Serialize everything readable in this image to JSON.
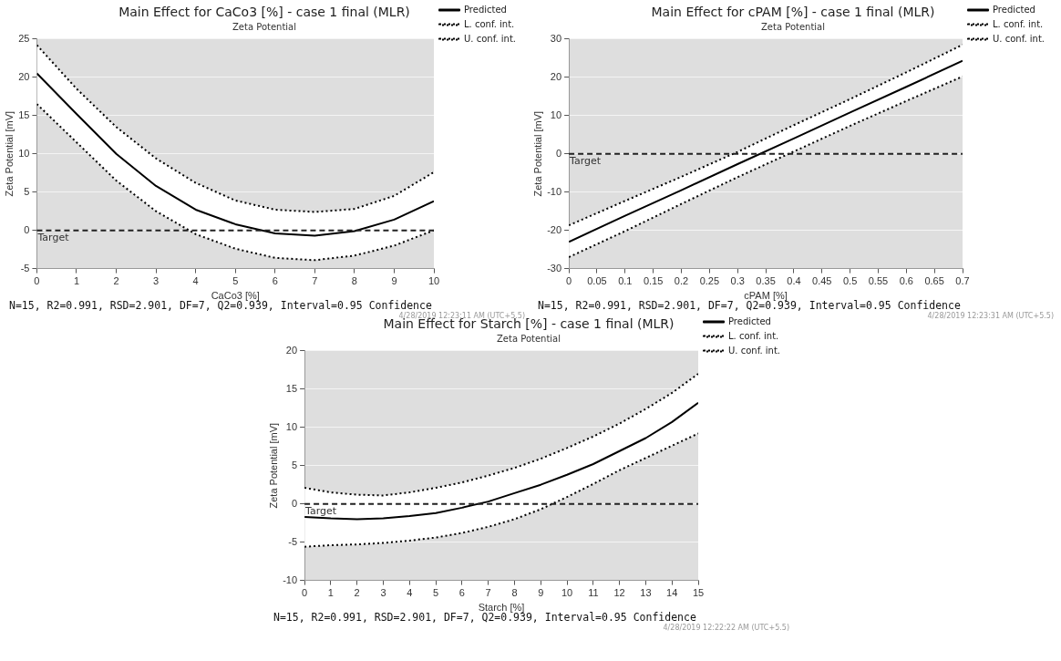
{
  "chart_data": [
    {
      "type": "line",
      "title": "Main Effect for CaCo3 [%] - case 1 final (MLR)",
      "subtitle": "Zeta Potential",
      "xlabel": "CaCo3 [%]",
      "ylabel": "Zeta Potential [mV]",
      "x": [
        0,
        1,
        2,
        3,
        4,
        5,
        6,
        7,
        8,
        9,
        10
      ],
      "series": [
        {
          "name": "Predicted",
          "color": "#000000",
          "line_style": "solid",
          "values": [
            20.5,
            15.2,
            10.0,
            5.8,
            2.7,
            0.8,
            -0.4,
            -0.7,
            -0.1,
            1.4,
            3.8
          ],
          "lower": [
            16.5,
            11.5,
            6.5,
            2.5,
            -0.5,
            -2.4,
            -3.6,
            -3.9,
            -3.3,
            -2.0,
            0.0
          ],
          "upper": [
            24.2,
            18.5,
            13.5,
            9.4,
            6.2,
            3.9,
            2.7,
            2.4,
            2.8,
            4.5,
            7.6
          ]
        },
        {
          "name": "L. conf. int.",
          "color": "#000000",
          "line_style": "dotted",
          "values": [
            16.5,
            11.5,
            6.5,
            2.5,
            -0.5,
            -2.4,
            -3.6,
            -3.9,
            -3.3,
            -2.0,
            0.0
          ]
        },
        {
          "name": "U. conf. int.",
          "color": "#000000",
          "line_style": "dotted",
          "values": [
            24.2,
            18.5,
            13.5,
            9.4,
            6.2,
            3.9,
            2.7,
            2.4,
            2.8,
            4.5,
            7.6
          ]
        }
      ],
      "xlim": [
        0,
        10
      ],
      "xticks": [
        0,
        1,
        2,
        3,
        4,
        5,
        6,
        7,
        8,
        9,
        10
      ],
      "ylim": [
        -5,
        25
      ],
      "yticks": [
        -5,
        0,
        5,
        10,
        15,
        20,
        25
      ],
      "ref_lines": [
        {
          "axis": "y",
          "value": 0,
          "label": "Target",
          "line_style": "dashed"
        }
      ],
      "grid": "y",
      "legend": "top right",
      "marker": "none",
      "annotations": [
        "N=15, R2=0.991, RSD=2.901, DF=7, Q2=0.939, Interval=0.95 Confidence",
        "4/28/2019 12:23:11 AM (UTC+5.5)"
      ]
    },
    {
      "type": "line",
      "title": "Main Effect for cPAM [%] - case 1 final (MLR)",
      "subtitle": "Zeta Potential",
      "xlabel": "cPAM [%]",
      "ylabel": "Zeta Potential [mV]",
      "x": [
        0,
        0.1,
        0.2,
        0.3,
        0.4,
        0.5,
        0.6,
        0.7
      ],
      "series": [
        {
          "name": "Predicted",
          "color": "#000000",
          "line_style": "solid",
          "values": [
            -23.0,
            -16.2,
            -9.5,
            -2.7,
            4.0,
            10.8,
            17.5,
            24.3
          ],
          "lower": [
            -27.0,
            -20.2,
            -13.1,
            -6.1,
            0.6,
            7.3,
            13.8,
            20.2
          ],
          "upper": [
            -18.7,
            -12.3,
            -6.0,
            0.5,
            7.5,
            14.3,
            21.3,
            28.5
          ]
        },
        {
          "name": "L. conf. int.",
          "color": "#000000",
          "line_style": "dotted",
          "values": [
            -27.0,
            -20.2,
            -13.1,
            -6.1,
            0.6,
            7.3,
            13.8,
            20.2
          ]
        },
        {
          "name": "U. conf. int.",
          "color": "#000000",
          "line_style": "dotted",
          "values": [
            -18.7,
            -12.3,
            -6.0,
            0.5,
            7.5,
            14.3,
            21.3,
            28.5
          ]
        }
      ],
      "xlim": [
        0,
        0.7
      ],
      "xticks": [
        0,
        0.05,
        0.1,
        0.15,
        0.2,
        0.25,
        0.3,
        0.35,
        0.4,
        0.45,
        0.5,
        0.55,
        0.6,
        0.65,
        0.7
      ],
      "ylim": [
        -30,
        30
      ],
      "yticks": [
        -30,
        -20,
        -10,
        0,
        10,
        20,
        30
      ],
      "ref_lines": [
        {
          "axis": "y",
          "value": 0,
          "label": "Target",
          "line_style": "dashed"
        }
      ],
      "grid": "y",
      "legend": "top right",
      "marker": "none",
      "annotations": [
        "N=15, R2=0.991, RSD=2.901, DF=7, Q2=0.939, Interval=0.95 Confidence",
        "4/28/2019 12:23:31 AM (UTC+5.5)"
      ]
    },
    {
      "type": "line",
      "title": "Main Effect for Starch [%] - case 1 final (MLR)",
      "subtitle": "Zeta Potential",
      "xlabel": "Starch [%]",
      "ylabel": "Zeta Potential [mV]",
      "x": [
        0,
        1,
        2,
        3,
        4,
        5,
        6,
        7,
        8,
        9,
        10,
        11,
        12,
        13,
        14,
        15
      ],
      "series": [
        {
          "name": "Predicted",
          "color": "#000000",
          "line_style": "solid",
          "values": [
            -1.7,
            -1.9,
            -2.0,
            -1.9,
            -1.6,
            -1.2,
            -0.5,
            0.3,
            1.4,
            2.5,
            3.8,
            5.2,
            6.9,
            8.6,
            10.7,
            13.2
          ],
          "lower": [
            -5.6,
            -5.4,
            -5.3,
            -5.1,
            -4.8,
            -4.4,
            -3.8,
            -3.0,
            -2.0,
            -0.7,
            0.9,
            2.6,
            4.4,
            6.0,
            7.6,
            9.2
          ],
          "upper": [
            2.1,
            1.5,
            1.2,
            1.1,
            1.5,
            2.1,
            2.8,
            3.7,
            4.7,
            5.9,
            7.3,
            8.8,
            10.5,
            12.4,
            14.5,
            17.0
          ]
        },
        {
          "name": "L. conf. int.",
          "color": "#000000",
          "line_style": "dotted",
          "values": [
            -5.6,
            -5.4,
            -5.3,
            -5.1,
            -4.8,
            -4.4,
            -3.8,
            -3.0,
            -2.0,
            -0.7,
            0.9,
            2.6,
            4.4,
            6.0,
            7.6,
            9.2
          ]
        },
        {
          "name": "U. conf. int.",
          "color": "#000000",
          "line_style": "dotted",
          "values": [
            2.1,
            1.5,
            1.2,
            1.1,
            1.5,
            2.1,
            2.8,
            3.7,
            4.7,
            5.9,
            7.3,
            8.8,
            10.5,
            12.4,
            14.5,
            17.0
          ]
        }
      ],
      "xlim": [
        0,
        15
      ],
      "xticks": [
        0,
        1,
        2,
        3,
        4,
        5,
        6,
        7,
        8,
        9,
        10,
        11,
        12,
        13,
        14,
        15
      ],
      "ylim": [
        -10,
        20
      ],
      "yticks": [
        -10,
        -5,
        0,
        5,
        10,
        15,
        20
      ],
      "ref_lines": [
        {
          "axis": "y",
          "value": 0,
          "label": "Target",
          "line_style": "dashed"
        }
      ],
      "grid": "y",
      "legend": "top right",
      "marker": "none",
      "annotations": [
        "N=15, R2=0.991, RSD=2.901, DF=7, Q2=0.939, Interval=0.95 Confidence",
        "4/28/2019 12:22:22 AM (UTC+5.5)"
      ]
    }
  ]
}
